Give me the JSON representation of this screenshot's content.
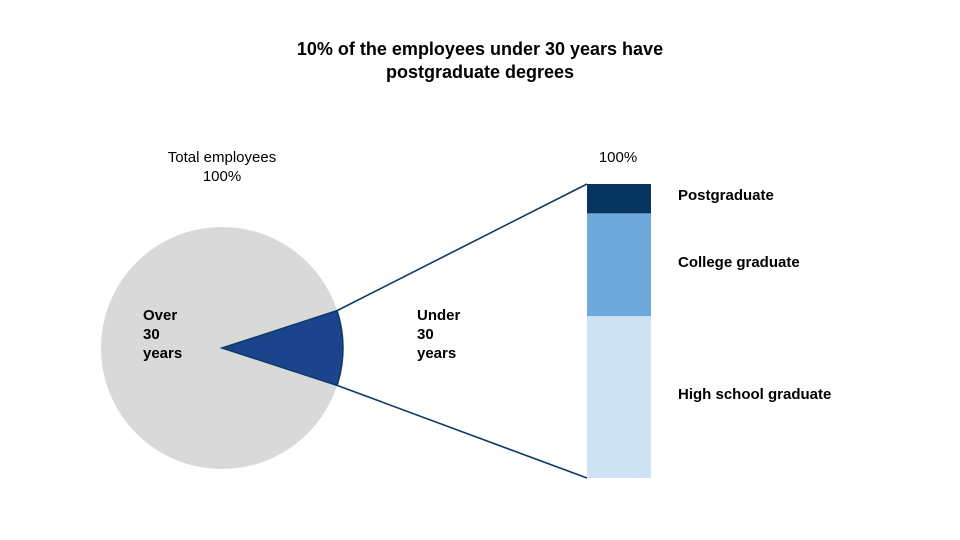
{
  "chart_data": {
    "type": "bar",
    "title_lines": [
      "10% of the employees under 30 years have",
      "postgraduate degrees"
    ],
    "pie": {
      "caption_lines": [
        "Total employees",
        "100%"
      ],
      "slices": [
        {
          "label_lines": [
            "Over",
            "30",
            "years"
          ],
          "value": 0.9,
          "color": "#d9d9d9"
        },
        {
          "label_lines": [
            "Under",
            "30",
            "years"
          ],
          "value": 0.1,
          "color": "#1c448c"
        }
      ]
    },
    "bar": {
      "caption": "100%",
      "categories": [
        "Postgraduate",
        "College graduate",
        "High school graduate"
      ],
      "values": [
        0.1,
        0.35,
        0.55
      ],
      "colors": [
        "#06355f",
        "#6fa8dc",
        "#cfe2f3"
      ]
    },
    "connector_color": "#0b3a66"
  }
}
